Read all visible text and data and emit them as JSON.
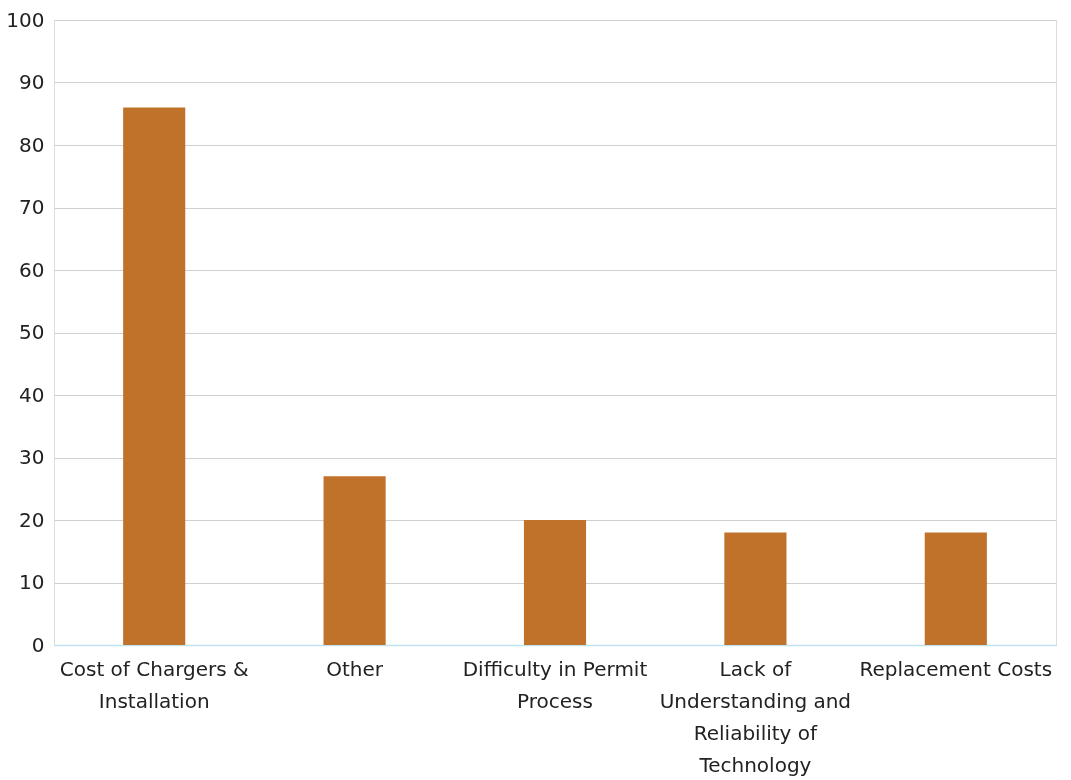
{
  "chart_data": {
    "type": "bar",
    "categories": [
      "Cost of Chargers & Installation",
      "Other",
      "Difficulty in Permit Process",
      "Lack of Understanding and Reliability of Technology",
      "Replacement Costs"
    ],
    "values": [
      86,
      27,
      20,
      18,
      18
    ],
    "color": "#c0722a",
    "ylim": [
      0,
      100
    ],
    "yticks": [
      0,
      10,
      20,
      30,
      40,
      50,
      60,
      70,
      80,
      90,
      100
    ],
    "grid": "y"
  }
}
